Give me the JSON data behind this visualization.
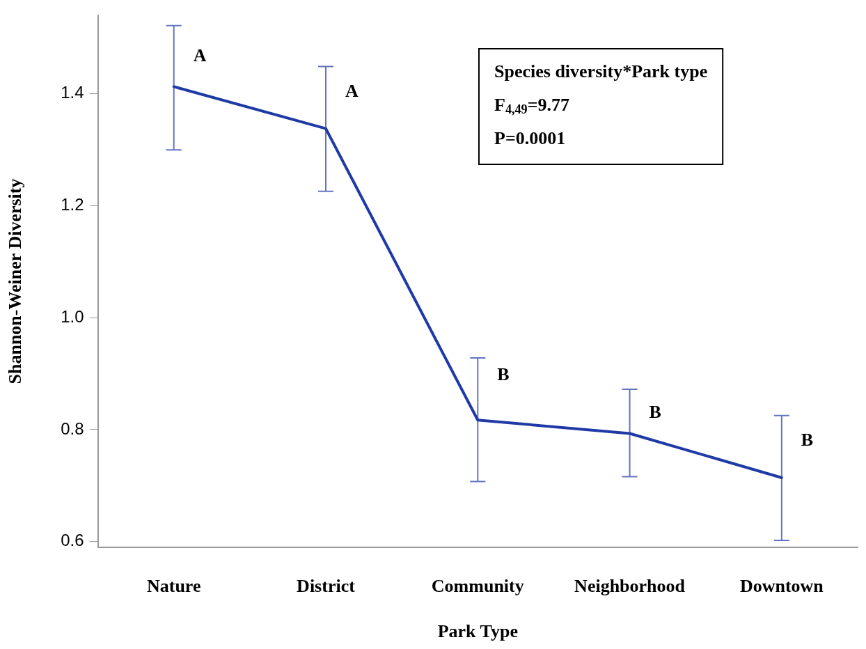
{
  "chart_data": {
    "type": "line",
    "xlabel": "Park Type",
    "ylabel": "Shannon-Weiner Diversity",
    "categories": [
      "Nature",
      "District",
      "Community",
      "Neighborhood",
      "Downtown"
    ],
    "series": [
      {
        "color": "#1f3aa6",
        "values": [
          1.413,
          1.338,
          0.817,
          0.793,
          0.714
        ],
        "errors": [
          [
            1.3,
            1.522
          ],
          [
            1.226,
            1.449
          ],
          [
            0.707,
            0.928
          ],
          [
            0.716,
            0.872
          ],
          [
            0.602,
            0.825
          ]
        ]
      }
    ],
    "ylim": [
      0.59,
      1.54
    ],
    "yticks": [
      {
        "value": 0.6,
        "label": "0.6"
      },
      {
        "value": 0.8,
        "label": "0.8"
      },
      {
        "value": 1.0,
        "label": "1.0"
      },
      {
        "value": 1.2,
        "label": "1.2"
      },
      {
        "value": 1.4,
        "label": "1.4"
      }
    ],
    "grid": false,
    "legend": false,
    "marker": "none",
    "line_style": "solid",
    "annotations": [
      {
        "text": "A",
        "x": "Nature",
        "y": 1.467
      },
      {
        "text": "A",
        "x": "District",
        "y": 1.403
      },
      {
        "text": "B",
        "x": "Community",
        "y": 0.896
      },
      {
        "text": "B",
        "x": "Neighborhood",
        "y": 0.829
      },
      {
        "text": "B",
        "x": "Downtown",
        "y": 0.779
      },
      "Species diversity*Park type",
      "F$_{4,49}$=9.77",
      "P=0.0001"
    ]
  }
}
